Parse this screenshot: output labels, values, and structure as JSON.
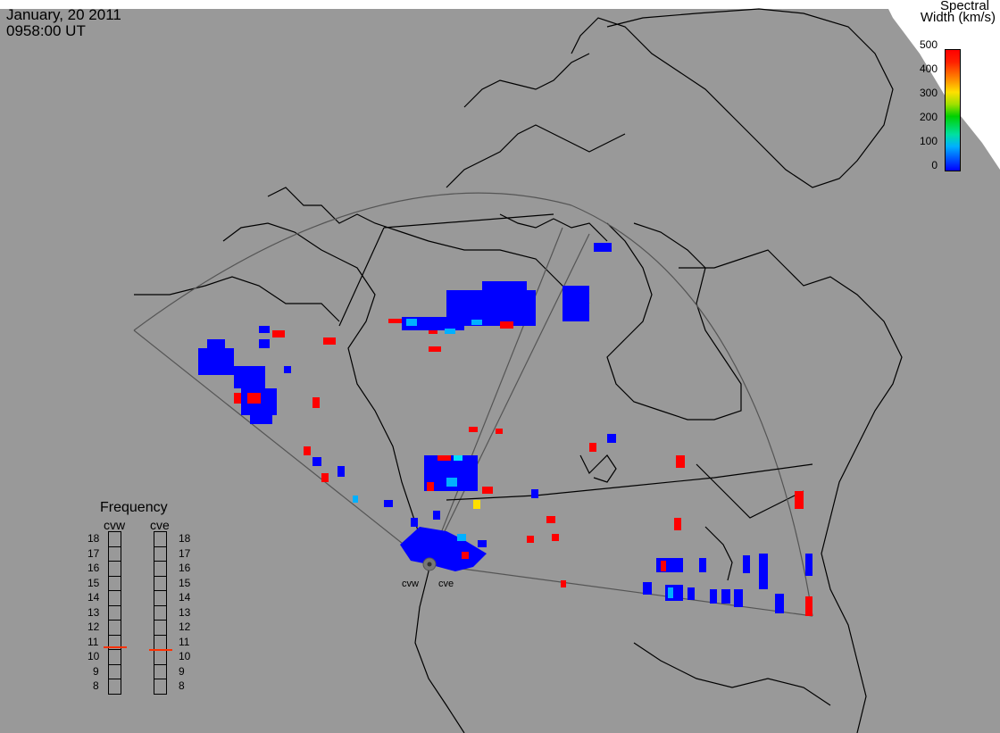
{
  "header": {
    "date": "January, 20 2011",
    "time": "0958:00 UT"
  },
  "colorbar": {
    "title_line1": "Spectral",
    "title_line2": "Width (km/s)",
    "ticks": [
      "500",
      "400",
      "300",
      "200",
      "100",
      "0"
    ],
    "colors": [
      "#0000ff",
      "#00b0ff",
      "#00d000",
      "#ffe000",
      "#ff0000"
    ]
  },
  "frequency_panel": {
    "title": "Frequency",
    "radars": [
      "cvw",
      "cve"
    ],
    "scale": [
      "18",
      "17",
      "16",
      "15",
      "14",
      "13",
      "12",
      "11",
      "10",
      "9",
      "8"
    ],
    "cvw_value_mhz": 10.7,
    "cve_value_mhz": 10.5,
    "marker_color": "#ff3000"
  },
  "stations": {
    "west": "cvw",
    "east": "cve"
  },
  "colors": {
    "background": "#999999",
    "coast": "#000000",
    "fov": "#555555",
    "low": "#0000ff",
    "mid": "#00b0ff",
    "high": "#ff0000",
    "ice": "#ffffff"
  }
}
